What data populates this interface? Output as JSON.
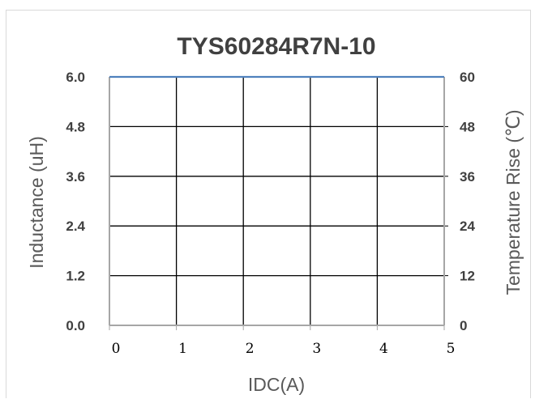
{
  "chart_data": {
    "type": "line",
    "title": "TYS60284R7N-10",
    "xlabel": "IDC(A)",
    "ylabel": "Inductance (uH)",
    "y2label": "Temperature Rise (℃)",
    "xlim": [
      0,
      5
    ],
    "ylim": [
      0,
      6.0
    ],
    "y2lim": [
      0,
      60
    ],
    "x_ticks": [
      "0",
      "1",
      "2",
      "3",
      "4",
      "5"
    ],
    "y_ticks": [
      "0.0",
      "1.2",
      "2.4",
      "3.6",
      "4.8",
      "6.0"
    ],
    "y2_ticks": [
      "0",
      "12",
      "24",
      "36",
      "48",
      "60"
    ],
    "grid": true,
    "series": [
      {
        "name": "",
        "axis": "left",
        "color": "#4f81bd",
        "x": [
          0,
          5
        ],
        "y": [
          6.0,
          6.0
        ]
      }
    ]
  }
}
